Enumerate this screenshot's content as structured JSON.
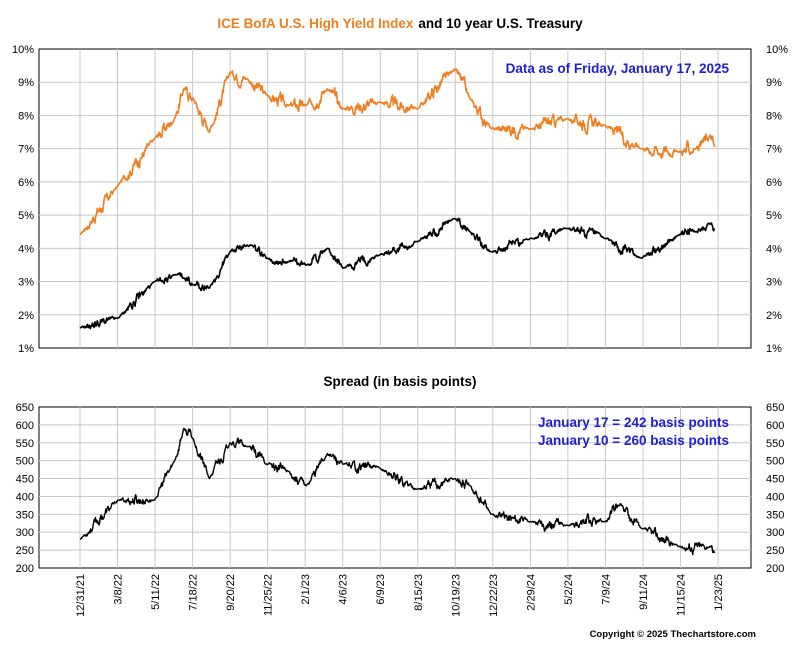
{
  "header": {
    "title_part1": "ICE BofA U.S. High Yield Index",
    "title_part2": "and 10 year U.S. Treasury",
    "title_part1_color": "#f07d1e"
  },
  "top_panel": {
    "note": "Data as of Friday, January 17, 2025",
    "y_ticks": [
      "1%",
      "2%",
      "3%",
      "4%",
      "5%",
      "6%",
      "7%",
      "8%",
      "9%",
      "10%"
    ]
  },
  "bottom_panel": {
    "title": "Spread (in basis points)",
    "note_line1": "January 17 = 242 basis points",
    "note_line2": "January 10 = 260 basis points",
    "y_ticks": [
      "200",
      "250",
      "300",
      "350",
      "400",
      "450",
      "500",
      "550",
      "600",
      "650"
    ]
  },
  "x_ticks": [
    "12/31/21",
    "3/8/22",
    "5/11/22",
    "7/18/22",
    "9/20/22",
    "11/25/22",
    "2/1/23",
    "4/6/23",
    "6/9/23",
    "8/15/23",
    "10/19/23",
    "12/22/23",
    "2/29/24",
    "5/2/24",
    "7/9/24",
    "9/11/24",
    "11/15/24",
    "1/23/25"
  ],
  "copyright": "Copyright © 2025 Thechartstore.com",
  "colors": {
    "high_yield": "#f07d1e",
    "treasury": "#000000",
    "spread": "#000000",
    "note": "#1e1ed2",
    "grid": "#c8c8c8"
  },
  "chart_data": [
    {
      "type": "line",
      "title": "ICE BofA U.S. High Yield Index and 10 year U.S. Treasury",
      "x": [
        "2021-12-31",
        "2022-03-08",
        "2022-05-11",
        "2022-06-15",
        "2022-07-01",
        "2022-07-18",
        "2022-08-15",
        "2022-09-20",
        "2022-10-20",
        "2022-11-25",
        "2023-01-01",
        "2023-02-01",
        "2023-03-10",
        "2023-04-06",
        "2023-06-09",
        "2023-08-15",
        "2023-10-19",
        "2023-11-15",
        "2023-12-22",
        "2024-02-29",
        "2024-05-02",
        "2024-07-09",
        "2024-09-11",
        "2024-11-15",
        "2024-12-15",
        "2025-01-10",
        "2025-01-17"
      ],
      "ylim": [
        1,
        10
      ],
      "y_unit": "%",
      "series": [
        {
          "values": [
            4.4,
            5.9,
            7.3,
            7.9,
            8.8,
            8.5,
            7.5,
            9.3,
            9.1,
            8.6,
            8.3,
            8.3,
            8.8,
            8.2,
            8.4,
            8.2,
            9.4,
            8.5,
            7.6,
            7.6,
            7.9,
            7.7,
            7.0,
            6.9,
            7.0,
            7.4,
            7.05
          ]
        },
        {
          "values": [
            1.6,
            1.9,
            3.0,
            3.2,
            3.1,
            2.9,
            2.8,
            3.9,
            4.1,
            3.7,
            3.6,
            3.5,
            4.0,
            3.4,
            3.8,
            4.2,
            4.9,
            4.5,
            3.9,
            4.3,
            4.6,
            4.3,
            3.7,
            4.4,
            4.5,
            4.75,
            4.6
          ]
        }
      ]
    },
    {
      "type": "line",
      "title": "Spread (in basis points)",
      "x": [
        "2021-12-31",
        "2022-03-08",
        "2022-05-11",
        "2022-06-15",
        "2022-07-01",
        "2022-07-18",
        "2022-08-15",
        "2022-09-20",
        "2022-10-20",
        "2022-11-25",
        "2023-01-01",
        "2023-02-01",
        "2023-03-10",
        "2023-04-06",
        "2023-06-09",
        "2023-08-15",
        "2023-10-19",
        "2023-11-15",
        "2023-12-22",
        "2024-02-29",
        "2024-05-02",
        "2024-07-09",
        "2024-08-05",
        "2024-09-11",
        "2024-11-15",
        "2025-01-10",
        "2025-01-17"
      ],
      "ylim": [
        200,
        650
      ],
      "values": [
        280,
        390,
        390,
        500,
        590,
        560,
        450,
        550,
        540,
        490,
        470,
        430,
        520,
        490,
        480,
        420,
        450,
        430,
        350,
        330,
        320,
        330,
        380,
        310,
        260,
        260,
        242
      ]
    }
  ]
}
